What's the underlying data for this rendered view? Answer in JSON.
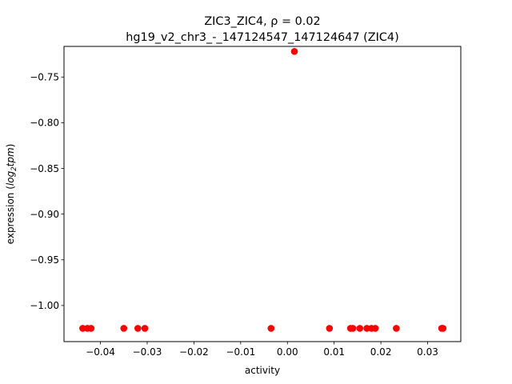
{
  "chart_data": {
    "type": "scatter",
    "title_line1": "ZIC3_ZIC4, ρ = 0.02",
    "title_line2": "hg19_v2_chr3_-_147124547_147124647 (ZIC4)",
    "xlabel": "activity",
    "ylabel_prefix": "expression (",
    "ylabel_log": "log",
    "ylabel_sub": "2",
    "ylabel_suffix": "tpm",
    "ylabel_close": ")",
    "xlim": [
      -0.0478,
      0.0371
    ],
    "ylim": [
      -1.0395,
      -0.7165
    ],
    "x_ticks": [
      -0.04,
      -0.03,
      -0.02,
      -0.01,
      0.0,
      0.01,
      0.02,
      0.03
    ],
    "x_tick_labels": [
      "−0.04",
      "−0.03",
      "−0.02",
      "−0.01",
      "0.00",
      "0.01",
      "0.02",
      "0.03"
    ],
    "y_ticks": [
      -1.0,
      -0.95,
      -0.9,
      -0.85,
      -0.8,
      -0.75
    ],
    "y_tick_labels": [
      "−1.00",
      "−0.95",
      "−0.90",
      "−0.85",
      "−0.80",
      "−0.75"
    ],
    "marker_color": "#ff0000",
    "grid": false,
    "x": [
      -0.0438,
      -0.0428,
      -0.042,
      -0.035,
      -0.032,
      -0.0305,
      -0.0035,
      0.0015,
      0.009,
      0.0135,
      0.014,
      0.0155,
      0.017,
      0.018,
      0.0188,
      0.0233,
      0.033,
      0.0333
    ],
    "y": [
      -1.025,
      -1.025,
      -1.025,
      -1.025,
      -1.025,
      -1.025,
      -1.025,
      -0.722,
      -1.025,
      -1.025,
      -1.025,
      -1.025,
      -1.025,
      -1.025,
      -1.025,
      -1.025,
      -1.025,
      -1.025
    ]
  }
}
